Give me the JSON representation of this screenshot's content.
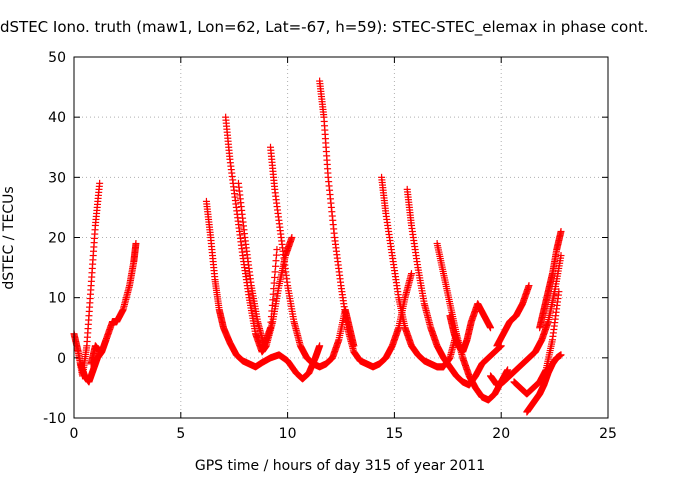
{
  "chart_data": {
    "type": "scatter",
    "title": "dSTEC Iono. truth (maw1, Lon=62, Lat=-67, h=59): STEC-STEC_elemax in phase cont.",
    "xlabel": "GPS time / hours of day 315 of year 2011",
    "ylabel": "dSTEC  / TECUs",
    "xlim": [
      0,
      25
    ],
    "ylim": [
      -10,
      50
    ],
    "xticks": [
      0,
      5,
      10,
      15,
      20,
      25
    ],
    "yticks": [
      -10,
      0,
      10,
      20,
      30,
      40,
      50
    ],
    "grid": true,
    "marker": "+",
    "color": "#ff0000",
    "series": [
      {
        "x": [
          0.0,
          0.2,
          0.4,
          0.6,
          0.8,
          1.0,
          1.2
        ],
        "y": [
          4,
          1,
          -3,
          2,
          12,
          22,
          29
        ]
      },
      {
        "x": [
          0.3,
          0.5,
          0.7,
          0.9,
          1.1,
          1.3,
          1.5,
          1.8,
          2.0,
          2.3,
          2.6,
          2.8,
          2.9
        ],
        "y": [
          -1,
          -3,
          -4,
          -2,
          0,
          1,
          3,
          6,
          6,
          8,
          12,
          16,
          19
        ]
      },
      {
        "x": [
          0.8,
          1.0,
          1.2
        ],
        "y": [
          -1,
          2,
          1
        ]
      },
      {
        "x": [
          6.2,
          6.4,
          6.6,
          6.8,
          7.0,
          7.3,
          7.6,
          7.9,
          8.2,
          8.5,
          8.8,
          9.2,
          9.6,
          10.0,
          10.4,
          10.7,
          11.0,
          11.3,
          11.5
        ],
        "y": [
          26,
          20,
          13,
          8,
          5,
          2.5,
          0.5,
          -0.5,
          -1,
          -1.5,
          -0.8,
          0,
          0.5,
          -0.5,
          -2.5,
          -3.5,
          -2.5,
          0,
          2
        ]
      },
      {
        "x": [
          7.1,
          7.3,
          7.6,
          7.9,
          8.2,
          8.5,
          8.8,
          9.0,
          9.3,
          9.6,
          9.9,
          10.2
        ],
        "y": [
          40,
          33,
          25,
          17,
          10,
          4,
          1,
          2,
          6,
          12,
          17,
          20
        ]
      },
      {
        "x": [
          7.7,
          8.0,
          8.3,
          8.6,
          8.9,
          9.2,
          9.5
        ],
        "y": [
          29,
          20,
          12,
          6,
          2,
          5,
          18
        ]
      },
      {
        "x": [
          9.2,
          9.4,
          9.7,
          10.0,
          10.3,
          10.6,
          10.9,
          11.2,
          11.5,
          11.8,
          12.1,
          12.4,
          12.7,
          12.9,
          13.1
        ],
        "y": [
          35,
          28,
          20,
          12,
          6,
          2,
          0,
          -1,
          -1.5,
          -1,
          0,
          3,
          8,
          5,
          2
        ]
      },
      {
        "x": [
          11.5,
          11.7,
          11.9,
          12.2,
          12.5,
          12.8,
          13.1,
          13.4,
          13.7,
          14.0,
          14.3,
          14.6,
          14.9,
          15.2,
          15.5,
          15.8
        ],
        "y": [
          46,
          40,
          30,
          20,
          12,
          5,
          1,
          -0.5,
          -1,
          -1.5,
          -1,
          0,
          2,
          5,
          10,
          14
        ]
      },
      {
        "x": [
          14.4,
          14.6,
          14.9,
          15.2,
          15.5,
          15.8,
          16.1,
          16.4,
          16.7,
          17.0,
          17.3,
          17.6,
          17.9
        ],
        "y": [
          30,
          24,
          17,
          10,
          5,
          2,
          0.5,
          -0.5,
          -1,
          -1.5,
          -1.5,
          0,
          4
        ]
      },
      {
        "x": [
          15.6,
          15.8,
          16.1,
          16.4,
          16.7,
          17.0,
          17.3,
          17.6,
          17.9,
          18.2,
          18.5,
          18.8,
          19.1,
          19.4,
          19.7,
          20.0
        ],
        "y": [
          28,
          22,
          15,
          9,
          5,
          2,
          0,
          -1.5,
          -3,
          -4,
          -4.5,
          -3,
          -1,
          0,
          1,
          2
        ]
      },
      {
        "x": [
          17.0,
          17.3,
          17.6,
          17.9,
          18.2,
          18.5,
          18.8,
          19.1,
          19.4,
          19.7,
          20.0,
          20.3
        ],
        "y": [
          19,
          14,
          9,
          4,
          0,
          -3,
          -5,
          -6.5,
          -7,
          -6,
          -4,
          -2
        ]
      },
      {
        "x": [
          17.6,
          17.8,
          18.0,
          18.2,
          18.4,
          18.6,
          18.9,
          19.2,
          19.5
        ],
        "y": [
          7,
          4,
          2,
          1,
          3,
          6,
          9,
          7,
          5
        ]
      },
      {
        "x": [
          19.5,
          19.8,
          20.1,
          20.4,
          20.7,
          21.0,
          21.3,
          21.6,
          21.9,
          22.2,
          22.5,
          22.8
        ],
        "y": [
          -3,
          -4.5,
          -4,
          -3,
          -2,
          -1,
          0,
          1,
          3,
          6,
          11,
          17
        ]
      },
      {
        "x": [
          20.6,
          20.9,
          21.2,
          21.5,
          21.8,
          22.1,
          22.4,
          22.7
        ],
        "y": [
          -4,
          -5,
          -6,
          -5,
          -4,
          -2,
          3,
          11
        ]
      },
      {
        "x": [
          21.2,
          21.4,
          21.6,
          21.8,
          22.0,
          22.2,
          22.4,
          22.6,
          22.8
        ],
        "y": [
          -9,
          -8,
          -7,
          -6,
          -4.5,
          -2.5,
          -1,
          0,
          0.5
        ]
      },
      {
        "x": [
          21.8,
          22.0,
          22.2,
          22.4,
          22.6,
          22.8
        ],
        "y": [
          5,
          8,
          11,
          14,
          18,
          21
        ]
      },
      {
        "x": [
          19.8,
          20.1,
          20.4,
          20.7,
          21.0,
          21.3
        ],
        "y": [
          2,
          4,
          6,
          7,
          9,
          12
        ]
      }
    ]
  }
}
